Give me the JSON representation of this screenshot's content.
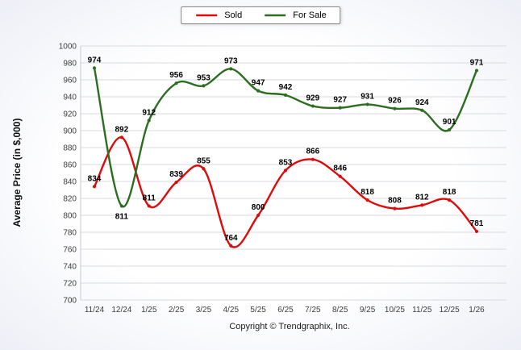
{
  "footer": "Copyright © Trendgraphix, Inc.",
  "chart_data": {
    "type": "line",
    "categories": [
      "11/24",
      "12/24",
      "1/25",
      "2/25",
      "3/25",
      "4/25",
      "5/25",
      "6/25",
      "7/25",
      "8/25",
      "9/25",
      "10/25",
      "11/25",
      "12/25",
      "1/26"
    ],
    "series": [
      {
        "name": "Sold",
        "color": "#df0a0a",
        "values": [
          834,
          892,
          811,
          839,
          855,
          764,
          800,
          853,
          866,
          846,
          818,
          808,
          812,
          818,
          781
        ]
      },
      {
        "name": "For Sale",
        "color": "#2c6e1f",
        "values": [
          974,
          811,
          912,
          956,
          953,
          973,
          947,
          942,
          929,
          927,
          931,
          926,
          924,
          901,
          971
        ],
        "label_below": [
          1
        ]
      }
    ],
    "title": "",
    "xlabel": "",
    "ylabel": "Average Price (in $,000)",
    "ylim": [
      700,
      1000
    ],
    "ytick_step": 20,
    "grid": true,
    "legend_position": "top"
  }
}
